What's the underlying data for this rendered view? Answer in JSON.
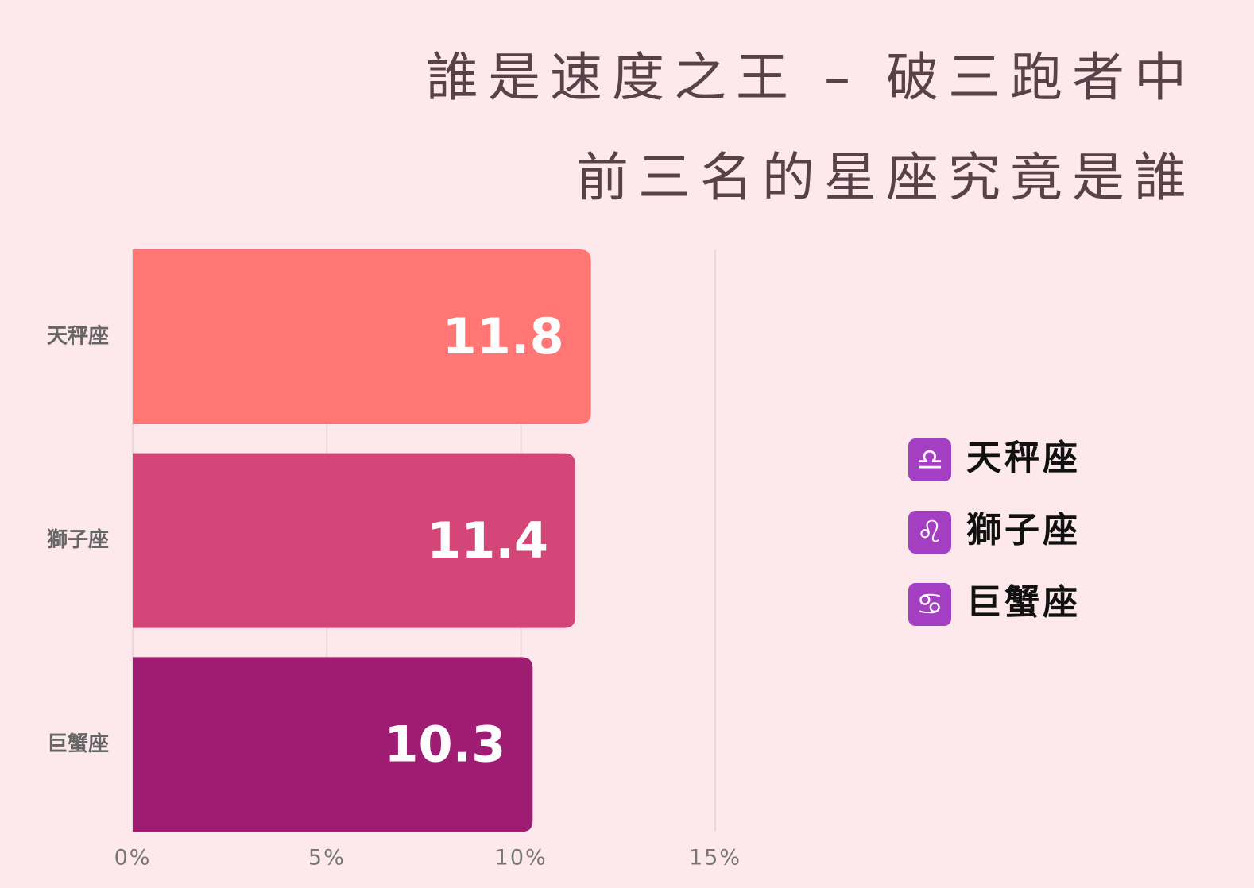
{
  "chart_data": {
    "type": "bar",
    "orientation": "horizontal",
    "title": [
      "誰是速度之王 – 破三跑者中",
      "前三名的星座究竟是誰"
    ],
    "categories": [
      "天秤座",
      "獅子座",
      "巨蟹座"
    ],
    "values": [
      11.8,
      11.4,
      10.3
    ],
    "colors": [
      "#ff7675",
      "#d44677",
      "#9e1c72"
    ],
    "xlim": [
      0,
      15
    ],
    "xticks": [
      {
        "value": 0,
        "label": "0%"
      },
      {
        "value": 5,
        "label": "5%"
      },
      {
        "value": 10,
        "label": "10%"
      },
      {
        "value": 15,
        "label": "15%"
      }
    ],
    "grid": true,
    "legend": [
      {
        "icon": "♎",
        "label": "天秤座"
      },
      {
        "icon": "♌",
        "label": "獅子座"
      },
      {
        "icon": "♋",
        "label": "巨蟹座"
      }
    ]
  }
}
